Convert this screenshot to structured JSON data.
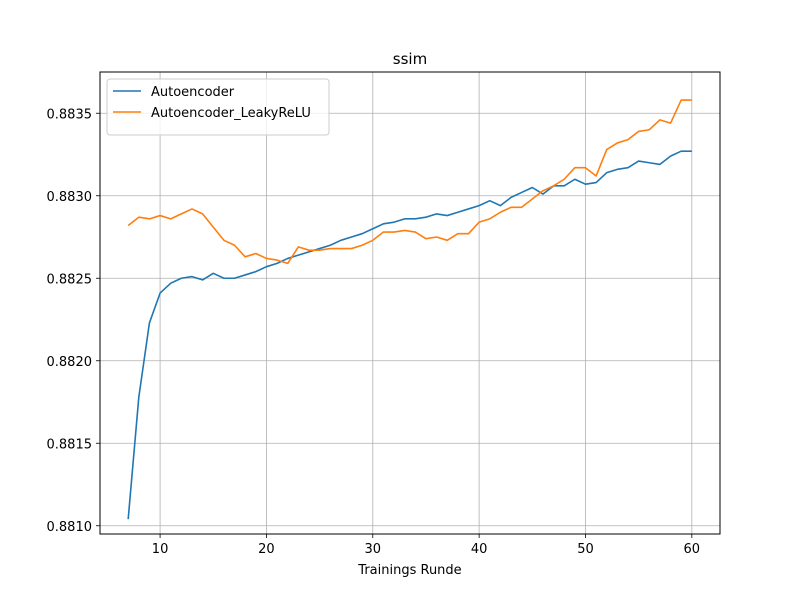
{
  "chart_data": {
    "type": "line",
    "title": "ssim",
    "xlabel": "Trainings Runde",
    "ylabel": "",
    "xlim": [
      4.35,
      62.65
    ],
    "ylim": [
      0.88095,
      0.88375
    ],
    "xticks": [
      10,
      20,
      30,
      40,
      50,
      60
    ],
    "yticks": [
      0.881,
      0.8815,
      0.882,
      0.8825,
      0.883,
      0.8835
    ],
    "ytick_labels": [
      "0.8810",
      "0.8815",
      "0.8820",
      "0.8825",
      "0.8830",
      "0.8835"
    ],
    "grid": true,
    "legend_position": "top-left",
    "x": [
      7,
      8,
      9,
      10,
      11,
      12,
      13,
      14,
      15,
      16,
      17,
      18,
      19,
      20,
      21,
      22,
      23,
      24,
      25,
      26,
      27,
      28,
      29,
      30,
      31,
      32,
      33,
      34,
      35,
      36,
      37,
      38,
      39,
      40,
      41,
      42,
      43,
      44,
      45,
      46,
      47,
      48,
      49,
      50,
      51,
      52,
      53,
      54,
      55,
      56,
      57,
      58,
      59,
      60
    ],
    "series": [
      {
        "name": "Autoencoder",
        "color": "#1f77b4",
        "values": [
          0.88104,
          0.88178,
          0.88223,
          0.88241,
          0.88247,
          0.8825,
          0.88251,
          0.88249,
          0.88253,
          0.8825,
          0.8825,
          0.88252,
          0.88254,
          0.88257,
          0.88259,
          0.88262,
          0.88264,
          0.88266,
          0.88268,
          0.8827,
          0.88273,
          0.88275,
          0.88277,
          0.8828,
          0.88283,
          0.88284,
          0.88286,
          0.88286,
          0.88287,
          0.88289,
          0.88288,
          0.8829,
          0.88292,
          0.88294,
          0.88297,
          0.88294,
          0.88299,
          0.88302,
          0.88305,
          0.88301,
          0.88306,
          0.88306,
          0.8831,
          0.88307,
          0.88308,
          0.88314,
          0.88316,
          0.88317,
          0.88321,
          0.8832,
          0.88319,
          0.88324,
          0.88327,
          0.88327
        ]
      },
      {
        "name": "Autoencoder_LeakyReLU",
        "color": "#ff7f0e",
        "values": [
          0.88282,
          0.88287,
          0.88286,
          0.88288,
          0.88286,
          0.88289,
          0.88292,
          0.88289,
          0.88281,
          0.88273,
          0.8827,
          0.88263,
          0.88265,
          0.88262,
          0.88261,
          0.88259,
          0.88269,
          0.88267,
          0.88267,
          0.88268,
          0.88268,
          0.88268,
          0.8827,
          0.88273,
          0.88278,
          0.88278,
          0.88279,
          0.88278,
          0.88274,
          0.88275,
          0.88273,
          0.88277,
          0.88277,
          0.88284,
          0.88286,
          0.8829,
          0.88293,
          0.88293,
          0.88298,
          0.88303,
          0.88306,
          0.8831,
          0.88317,
          0.88317,
          0.88312,
          0.88328,
          0.88332,
          0.88334,
          0.88339,
          0.8834,
          0.88346,
          0.88344,
          0.88358,
          0.88358
        ]
      }
    ]
  }
}
